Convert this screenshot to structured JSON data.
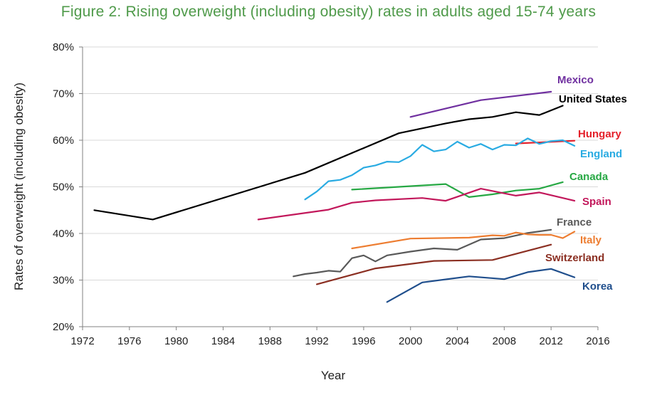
{
  "title": "Figure 2: Rising overweight (including obesity) rates in adults aged 15-74 years",
  "chart_data": {
    "type": "line",
    "xlabel": "Year",
    "ylabel": "Rates of overweight (including obesity)",
    "xlim": [
      1972,
      2016
    ],
    "ylim": [
      20,
      80
    ],
    "xticks": [
      "1972",
      "1976",
      "1980",
      "1984",
      "1988",
      "1992",
      "1996",
      "2000",
      "2004",
      "2008",
      "2012",
      "2016"
    ],
    "yticks": [
      "20%",
      "30%",
      "40%",
      "50%",
      "60%",
      "70%",
      "80%"
    ],
    "grid": "horizontal",
    "legend": "inline labels at line ends",
    "series": [
      {
        "name": "Mexico",
        "color": "#7030a0",
        "x": [
          2000,
          2006,
          2012
        ],
        "y": [
          65.0,
          68.6,
          70.4
        ]
      },
      {
        "name": "United States",
        "color": "#000000",
        "x": [
          1973,
          1978,
          1991,
          1999,
          2003,
          2005,
          2007,
          2009,
          2011,
          2013
        ],
        "y": [
          45.0,
          43.0,
          53.0,
          61.5,
          63.6,
          64.5,
          65.0,
          66.0,
          65.4,
          67.4
        ]
      },
      {
        "name": "Hungary",
        "color": "#e4202a",
        "x": [
          2009,
          2014
        ],
        "y": [
          59.3,
          59.9
        ]
      },
      {
        "name": "England",
        "color": "#29abe2",
        "x": [
          1991,
          1992,
          1993,
          1994,
          1995,
          1996,
          1997,
          1998,
          1999,
          2000,
          2001,
          2002,
          2003,
          2004,
          2005,
          2006,
          2007,
          2008,
          2009,
          2010,
          2011,
          2012,
          2013,
          2014
        ],
        "y": [
          47.3,
          49.0,
          51.2,
          51.5,
          52.5,
          54.1,
          54.6,
          55.4,
          55.3,
          56.6,
          59.0,
          57.6,
          58.0,
          59.7,
          58.4,
          59.2,
          58.0,
          59.0,
          58.9,
          60.4,
          59.2,
          59.8,
          60.0,
          58.8
        ]
      },
      {
        "name": "Canada",
        "color": "#27a844",
        "x": [
          1995,
          2003,
          2005,
          2007,
          2009,
          2011,
          2013
        ],
        "y": [
          49.4,
          50.6,
          47.8,
          48.4,
          49.2,
          49.6,
          51.0
        ]
      },
      {
        "name": "Spain",
        "color": "#c2185b",
        "x": [
          1987,
          1993,
          1995,
          1997,
          2001,
          2003,
          2006,
          2009,
          2011,
          2014
        ],
        "y": [
          43.0,
          45.1,
          46.6,
          47.1,
          47.6,
          47.0,
          49.6,
          48.1,
          48.8,
          47.0
        ]
      },
      {
        "name": "France",
        "color": "#595959",
        "x": [
          1990,
          1991,
          1992,
          1993,
          1994,
          1995,
          1996,
          1997,
          1998,
          2000,
          2002,
          2004,
          2006,
          2008,
          2010,
          2012
        ],
        "y": [
          30.8,
          31.3,
          31.6,
          32.0,
          31.8,
          34.7,
          35.3,
          34.0,
          35.3,
          36.1,
          36.8,
          36.5,
          38.7,
          39.0,
          40.1,
          40.8
        ]
      },
      {
        "name": "Italy",
        "color": "#ed7d31",
        "x": [
          1995,
          2000,
          2005,
          2007,
          2008,
          2009,
          2010,
          2011,
          2012,
          2013,
          2014
        ],
        "y": [
          36.8,
          38.9,
          39.1,
          39.6,
          39.5,
          40.2,
          39.8,
          39.7,
          39.7,
          39.0,
          40.4
        ]
      },
      {
        "name": "Switzerland",
        "color": "#8b2f22",
        "x": [
          1992,
          1997,
          2002,
          2007,
          2012
        ],
        "y": [
          29.1,
          32.5,
          34.1,
          34.3,
          37.6
        ]
      },
      {
        "name": "Korea",
        "color": "#1f4e8c",
        "x": [
          1998,
          2001,
          2005,
          2008,
          2010,
          2012,
          2014
        ],
        "y": [
          25.3,
          29.5,
          30.8,
          30.2,
          31.7,
          32.4,
          30.6
        ]
      }
    ]
  }
}
